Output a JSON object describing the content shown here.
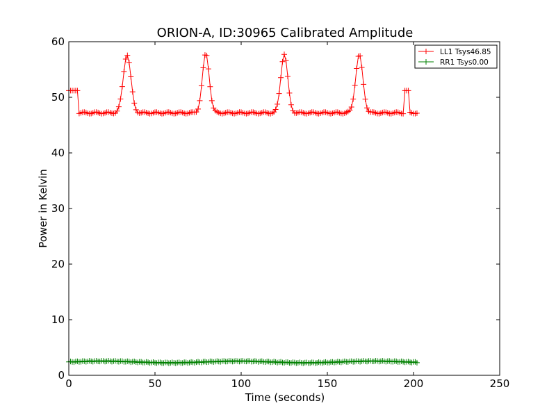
{
  "chart_data": {
    "type": "line",
    "title": "ORION-A, ID:30965 Calibrated Amplitude",
    "xlabel": "Time (seconds)",
    "ylabel": "Power in Kelvin",
    "xlim": [
      0,
      250
    ],
    "ylim": [
      0,
      60
    ],
    "xticks": [
      0,
      50,
      100,
      150,
      200,
      250
    ],
    "yticks": [
      0,
      10,
      20,
      30,
      40,
      50,
      60
    ],
    "grid": false,
    "legend_position": "top-right",
    "series": [
      {
        "name": "LL1 Tsys46.85",
        "color": "#ff0000",
        "marker": "+",
        "baseline": 47.2,
        "cal_level": 51.2,
        "cal_on_intervals": [
          [
            0,
            5
          ],
          [
            195,
            197
          ]
        ],
        "peaks": [
          {
            "center": 33.8,
            "amplitude": 10.5,
            "sigma": 2.2
          },
          {
            "center": 79.5,
            "amplitude": 10.6,
            "sigma": 2.0
          },
          {
            "center": 125.0,
            "amplitude": 10.6,
            "sigma": 2.0
          },
          {
            "center": 168.5,
            "amplitude": 10.4,
            "sigma": 2.1
          }
        ],
        "x_start": 0,
        "x_end": 202,
        "x_step": 1
      },
      {
        "name": "RR1 Tsys0.00",
        "color": "#008000",
        "marker": "+",
        "baseline": 2.4,
        "ripple": 0.15,
        "x_start": 0,
        "x_end": 202,
        "x_step": 1
      }
    ]
  }
}
